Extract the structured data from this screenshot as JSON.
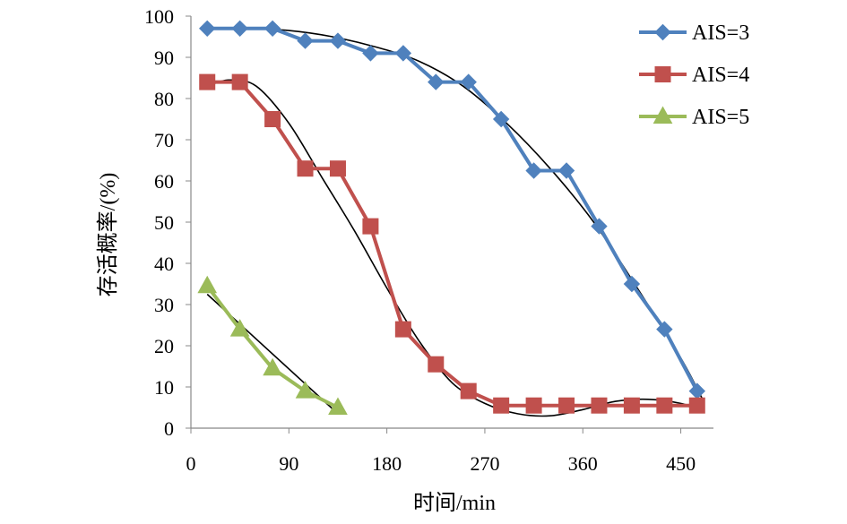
{
  "chart_data": {
    "type": "line",
    "title": "",
    "xlabel": "时间/min",
    "ylabel": "存活概率/(%)",
    "xlim": [
      0,
      480
    ],
    "ylim": [
      0,
      100
    ],
    "x_ticks": [
      0,
      90,
      180,
      270,
      360,
      450
    ],
    "y_ticks": [
      0,
      10,
      20,
      30,
      40,
      50,
      60,
      70,
      80,
      90,
      100
    ],
    "grid": false,
    "legend_position": "top-right",
    "series": [
      {
        "name": "AIS=3",
        "color": "#4f81bd",
        "marker": "diamond",
        "x": [
          15,
          45,
          75,
          105,
          135,
          165,
          195,
          225,
          255,
          285,
          315,
          345,
          375,
          405,
          435,
          465
        ],
        "values": [
          97,
          97,
          97,
          94,
          94,
          91,
          91,
          84,
          84,
          75,
          62.5,
          62.5,
          49,
          35,
          24,
          9
        ],
        "trend_x": [
          15,
          50,
          90,
          130,
          170,
          210,
          250,
          290,
          330,
          370,
          410,
          450,
          470
        ],
        "trend_y": [
          97,
          97,
          96.5,
          95,
          92.5,
          89,
          83,
          74,
          63,
          50,
          34,
          17,
          7
        ]
      },
      {
        "name": "AIS=4",
        "color": "#c0504d",
        "marker": "square",
        "x": [
          15,
          45,
          75,
          105,
          135,
          165,
          195,
          225,
          255,
          285,
          315,
          345,
          375,
          405,
          435,
          465
        ],
        "values": [
          84,
          84,
          75,
          63,
          63,
          49,
          24,
          15.5,
          9,
          5.5,
          5.5,
          5.5,
          5.5,
          5.5,
          5.5,
          5.5
        ],
        "trend_x": [
          15,
          35,
          60,
          90,
          120,
          150,
          180,
          210,
          240,
          270,
          300,
          330,
          360,
          390,
          420,
          450,
          465
        ],
        "trend_y": [
          83,
          84.5,
          83,
          74,
          61,
          48,
          34,
          21,
          11,
          6,
          3.5,
          3,
          4.5,
          6.5,
          7,
          6,
          4.5
        ]
      },
      {
        "name": "AIS=5",
        "color": "#9bbb59",
        "marker": "triangle",
        "x": [
          15,
          45,
          75,
          105,
          135
        ],
        "values": [
          34.5,
          24,
          14.5,
          9,
          5
        ],
        "trend_x": [
          15,
          135
        ],
        "trend_y": [
          32.5,
          3.5
        ]
      }
    ],
    "trend_color": "#000000"
  }
}
